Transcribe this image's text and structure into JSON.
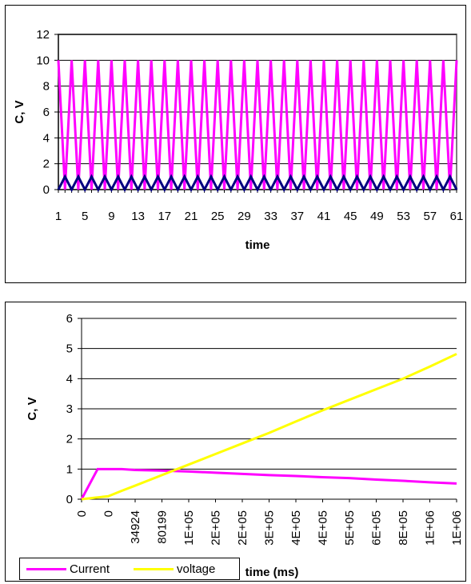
{
  "chart_data": [
    {
      "type": "line",
      "xlabel": "time",
      "ylabel": "C, V",
      "ylim": [
        0,
        12
      ],
      "y_ticks": [
        "0",
        "2",
        "4",
        "6",
        "8",
        "10",
        "12"
      ],
      "x_ticks": [
        "1",
        "5",
        "9",
        "13",
        "17",
        "21",
        "25",
        "29",
        "33",
        "37",
        "41",
        "45",
        "49",
        "53",
        "57",
        "61"
      ],
      "grid": "horizontal",
      "series": [
        {
          "color": "#ff00ff",
          "x": [
            1,
            2,
            3,
            4,
            5,
            6,
            7,
            8,
            9,
            10,
            11,
            12,
            13,
            14,
            15,
            16,
            17,
            18,
            19,
            20,
            21,
            22,
            23,
            24,
            25,
            26,
            27,
            28,
            29,
            30,
            31,
            32,
            33,
            34,
            35,
            36,
            37,
            38,
            39,
            40,
            41,
            42,
            43,
            44,
            45,
            46,
            47,
            48,
            49,
            50,
            51,
            52,
            53,
            54,
            55,
            56,
            57,
            58,
            59,
            60,
            61
          ],
          "values": [
            10,
            0,
            10,
            0,
            10,
            0,
            10,
            0,
            10,
            0,
            10,
            0,
            10,
            0,
            10,
            0,
            10,
            0,
            10,
            0,
            10,
            0,
            10,
            0,
            10,
            0,
            10,
            0,
            10,
            0,
            10,
            0,
            10,
            0,
            10,
            0,
            10,
            0,
            10,
            0,
            10,
            0,
            10,
            0,
            10,
            0,
            10,
            0,
            10,
            0,
            10,
            0,
            10,
            0,
            10,
            0,
            10,
            0,
            10,
            0,
            10
          ]
        },
        {
          "color": "#000080",
          "x": [
            1,
            2,
            3,
            4,
            5,
            6,
            7,
            8,
            9,
            10,
            11,
            12,
            13,
            14,
            15,
            16,
            17,
            18,
            19,
            20,
            21,
            22,
            23,
            24,
            25,
            26,
            27,
            28,
            29,
            30,
            31,
            32,
            33,
            34,
            35,
            36,
            37,
            38,
            39,
            40,
            41,
            42,
            43,
            44,
            45,
            46,
            47,
            48,
            49,
            50,
            51,
            52,
            53,
            54,
            55,
            56,
            57,
            58,
            59,
            60,
            61
          ],
          "values": [
            0,
            1,
            0,
            1,
            0,
            1,
            0,
            1,
            0,
            1,
            0,
            1,
            0,
            1,
            0,
            1,
            0,
            1,
            0,
            1,
            0,
            1,
            0,
            1,
            0,
            1,
            0,
            1,
            0,
            1,
            0,
            1,
            0,
            1,
            0,
            1,
            0,
            1,
            0,
            1,
            0,
            1,
            0,
            1,
            0,
            1,
            0,
            1,
            0,
            1,
            0,
            1,
            0,
            1,
            0,
            1,
            0,
            1,
            0,
            1,
            0
          ]
        }
      ]
    },
    {
      "type": "line",
      "xlabel": "time (ms)",
      "ylabel": "C, V",
      "ylim": [
        0,
        6
      ],
      "y_ticks": [
        "0",
        "1",
        "2",
        "3",
        "4",
        "5",
        "6"
      ],
      "x_ticks": [
        "0",
        "0",
        "34924",
        "80199",
        "1E+05",
        "2E+05",
        "2E+05",
        "3E+05",
        "4E+05",
        "4E+05",
        "5E+05",
        "6E+05",
        "8E+05",
        "1E+06",
        "1E+06"
      ],
      "grid": "horizontal",
      "legend": "bottom-left",
      "series": [
        {
          "name": "Current",
          "color": "#ff00ff",
          "x": [
            0,
            0.6,
            1,
            1.5,
            2,
            3,
            4,
            5,
            6,
            7,
            8,
            9,
            10,
            11,
            12,
            13,
            14
          ],
          "values": [
            0,
            1.0,
            1.0,
            1.0,
            0.97,
            0.95,
            0.92,
            0.88,
            0.84,
            0.8,
            0.77,
            0.73,
            0.7,
            0.65,
            0.61,
            0.56,
            0.52
          ]
        },
        {
          "name": "voltage",
          "color": "#ffff00",
          "x": [
            0,
            0.5,
            1,
            1.5,
            2,
            3,
            4,
            5,
            6,
            7,
            8,
            9,
            10,
            11,
            12,
            13,
            14
          ],
          "values": [
            0,
            0.05,
            0.1,
            0.28,
            0.45,
            0.8,
            1.15,
            1.5,
            1.85,
            2.2,
            2.58,
            2.95,
            3.3,
            3.65,
            4.0,
            4.4,
            4.82
          ]
        }
      ]
    }
  ]
}
